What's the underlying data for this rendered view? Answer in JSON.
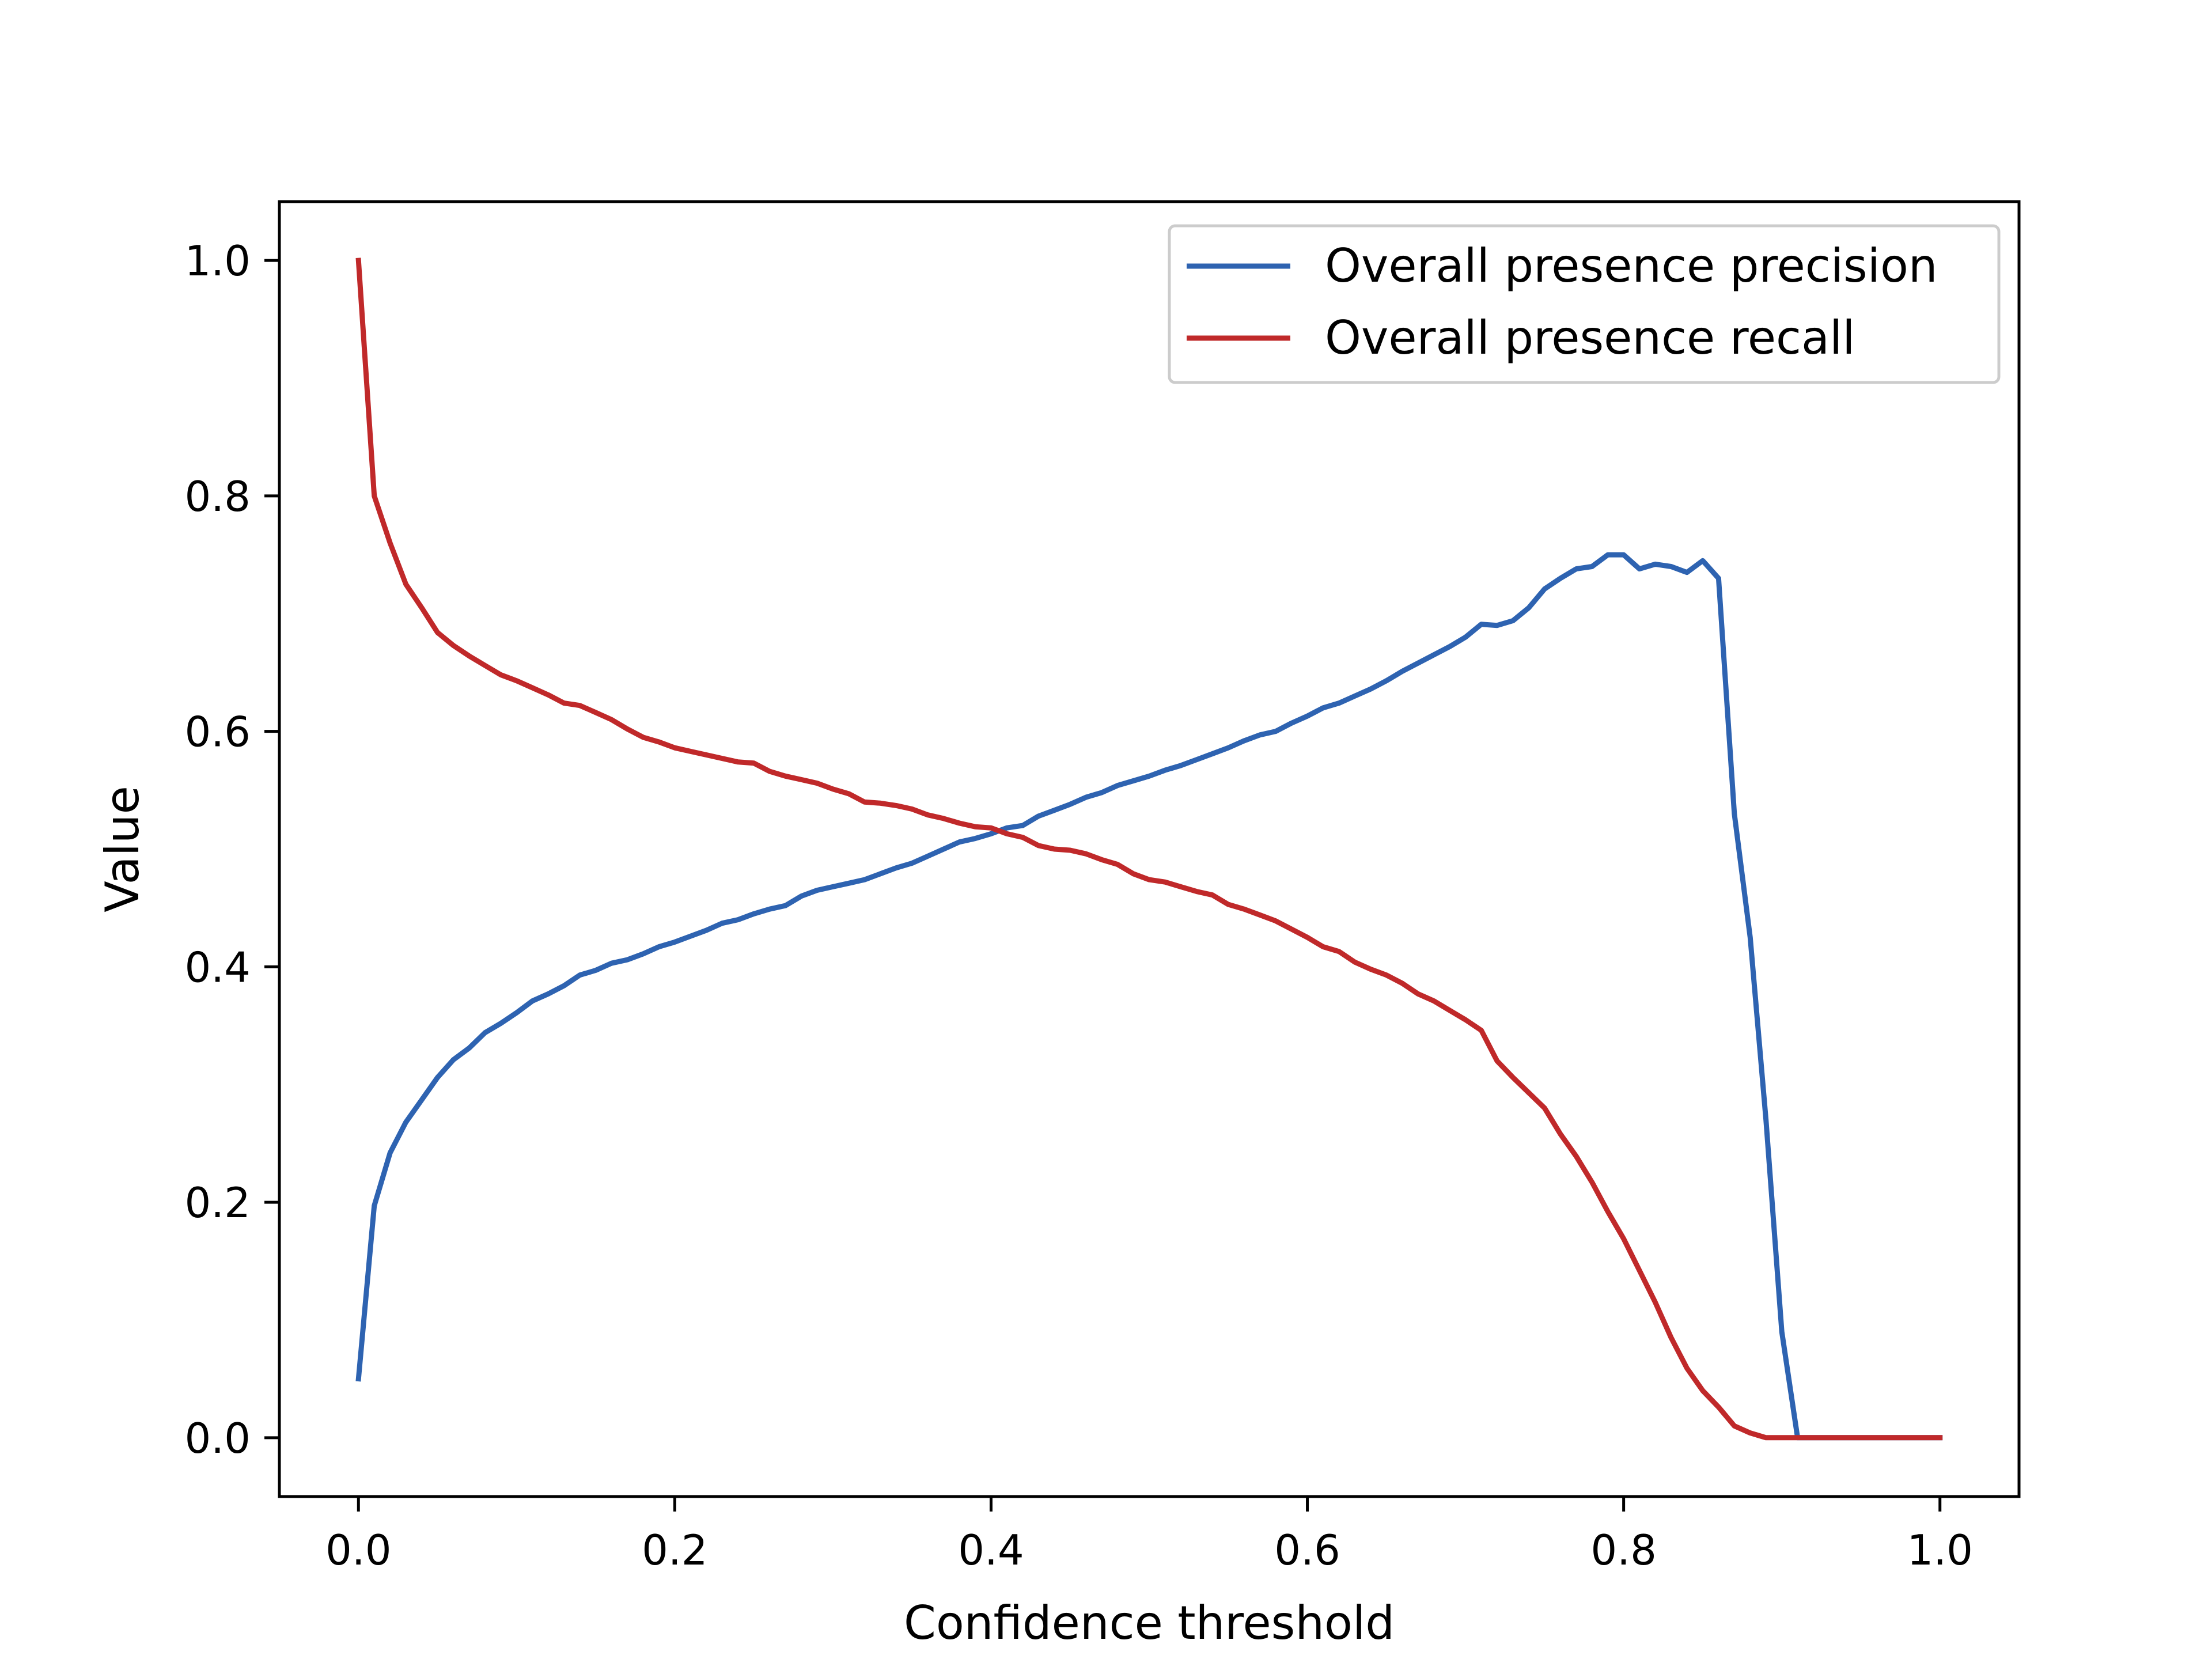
{
  "chart_data": {
    "type": "line",
    "title": "",
    "xlabel": "Confidence threshold",
    "ylabel": "Value",
    "xlim": [
      -0.05,
      1.05
    ],
    "ylim": [
      -0.05,
      1.05
    ],
    "xticks": [
      0.0,
      0.2,
      0.4,
      0.6,
      0.8,
      1.0
    ],
    "xtick_labels": [
      "0.0",
      "0.2",
      "0.4",
      "0.6",
      "0.8",
      "1.0"
    ],
    "yticks": [
      0.0,
      0.2,
      0.4,
      0.6,
      0.8,
      1.0
    ],
    "ytick_labels": [
      "0.0",
      "0.2",
      "0.4",
      "0.6",
      "0.8",
      "1.0"
    ],
    "grid": false,
    "legend_position": "top-right",
    "series": [
      {
        "name": "Overall presence precision",
        "color": "#2e63b1",
        "x": [
          0.0,
          0.01,
          0.02,
          0.03,
          0.04,
          0.05,
          0.06,
          0.07,
          0.08,
          0.09,
          0.1,
          0.11,
          0.12,
          0.13,
          0.14,
          0.15,
          0.16,
          0.17,
          0.18,
          0.19,
          0.2,
          0.21,
          0.22,
          0.23,
          0.24,
          0.25,
          0.26,
          0.27,
          0.28,
          0.29,
          0.3,
          0.31,
          0.32,
          0.33,
          0.34,
          0.35,
          0.36,
          0.37,
          0.38,
          0.39,
          0.4,
          0.41,
          0.42,
          0.43,
          0.44,
          0.45,
          0.46,
          0.47,
          0.48,
          0.49,
          0.5,
          0.51,
          0.52,
          0.53,
          0.54,
          0.55,
          0.56,
          0.57,
          0.58,
          0.59,
          0.6,
          0.61,
          0.62,
          0.63,
          0.64,
          0.65,
          0.66,
          0.67,
          0.68,
          0.69,
          0.7,
          0.71,
          0.72,
          0.73,
          0.74,
          0.75,
          0.76,
          0.77,
          0.78,
          0.79,
          0.8,
          0.81,
          0.82,
          0.83,
          0.84,
          0.85,
          0.86,
          0.87,
          0.88,
          0.89,
          0.9,
          0.91,
          0.92,
          0.93,
          0.94,
          0.95,
          0.96,
          0.97,
          0.98,
          0.99,
          1.0
        ],
        "y": [
          0.05,
          0.197,
          0.242,
          0.268,
          0.287,
          0.306,
          0.321,
          0.331,
          0.344,
          0.352,
          0.361,
          0.371,
          0.377,
          0.384,
          0.393,
          0.397,
          0.403,
          0.406,
          0.411,
          0.417,
          0.421,
          0.426,
          0.431,
          0.437,
          0.44,
          0.445,
          0.449,
          0.452,
          0.46,
          0.465,
          0.468,
          0.471,
          0.474,
          0.479,
          0.484,
          0.488,
          0.494,
          0.5,
          0.506,
          0.509,
          0.513,
          0.518,
          0.52,
          0.528,
          0.533,
          0.538,
          0.544,
          0.548,
          0.554,
          0.558,
          0.562,
          0.567,
          0.571,
          0.576,
          0.581,
          0.586,
          0.592,
          0.597,
          0.6,
          0.607,
          0.613,
          0.62,
          0.624,
          0.63,
          0.636,
          0.643,
          0.651,
          0.658,
          0.665,
          0.672,
          0.68,
          0.691,
          0.69,
          0.694,
          0.705,
          0.721,
          0.73,
          0.738,
          0.74,
          0.75,
          0.75,
          0.738,
          0.742,
          0.74,
          0.735,
          0.745,
          0.73,
          0.53,
          0.425,
          0.27,
          0.09,
          0.0,
          0.0,
          0.0,
          0.0,
          0.0,
          0.0,
          0.0,
          0.0,
          0.0,
          0.0
        ]
      },
      {
        "name": "Overall presence recall",
        "color": "#c0292a",
        "x": [
          0.0,
          0.01,
          0.02,
          0.03,
          0.04,
          0.05,
          0.06,
          0.07,
          0.08,
          0.09,
          0.1,
          0.11,
          0.12,
          0.13,
          0.14,
          0.15,
          0.16,
          0.17,
          0.18,
          0.19,
          0.2,
          0.21,
          0.22,
          0.23,
          0.24,
          0.25,
          0.26,
          0.27,
          0.28,
          0.29,
          0.3,
          0.31,
          0.32,
          0.33,
          0.34,
          0.35,
          0.36,
          0.37,
          0.38,
          0.39,
          0.4,
          0.41,
          0.42,
          0.43,
          0.44,
          0.45,
          0.46,
          0.47,
          0.48,
          0.49,
          0.5,
          0.51,
          0.52,
          0.53,
          0.54,
          0.55,
          0.56,
          0.57,
          0.58,
          0.59,
          0.6,
          0.61,
          0.62,
          0.63,
          0.64,
          0.65,
          0.66,
          0.67,
          0.68,
          0.69,
          0.7,
          0.71,
          0.72,
          0.73,
          0.74,
          0.75,
          0.76,
          0.77,
          0.78,
          0.79,
          0.8,
          0.81,
          0.82,
          0.83,
          0.84,
          0.85,
          0.86,
          0.87,
          0.88,
          0.89,
          0.9,
          0.91,
          0.92,
          0.93,
          0.94,
          0.95,
          0.96,
          0.97,
          0.98,
          0.99,
          1.0
        ],
        "y": [
          1.0,
          0.8,
          0.76,
          0.725,
          0.705,
          0.684,
          0.673,
          0.664,
          0.656,
          0.648,
          0.643,
          0.637,
          0.631,
          0.624,
          0.622,
          0.616,
          0.61,
          0.602,
          0.595,
          0.591,
          0.586,
          0.583,
          0.58,
          0.577,
          0.574,
          0.573,
          0.566,
          0.562,
          0.559,
          0.556,
          0.551,
          0.547,
          0.54,
          0.539,
          0.537,
          0.534,
          0.529,
          0.526,
          0.522,
          0.519,
          0.518,
          0.513,
          0.51,
          0.503,
          0.5,
          0.499,
          0.496,
          0.491,
          0.487,
          0.479,
          0.474,
          0.472,
          0.468,
          0.464,
          0.461,
          0.453,
          0.449,
          0.444,
          0.439,
          0.432,
          0.425,
          0.417,
          0.413,
          0.404,
          0.398,
          0.393,
          0.386,
          0.377,
          0.371,
          0.363,
          0.355,
          0.346,
          0.32,
          0.306,
          0.293,
          0.28,
          0.258,
          0.239,
          0.217,
          0.192,
          0.169,
          0.142,
          0.115,
          0.085,
          0.059,
          0.04,
          0.026,
          0.01,
          0.004,
          0.0,
          0.0,
          0.0,
          0.0,
          0.0,
          0.0,
          0.0,
          0.0,
          0.0,
          0.0,
          0.0,
          0.0
        ]
      }
    ]
  }
}
